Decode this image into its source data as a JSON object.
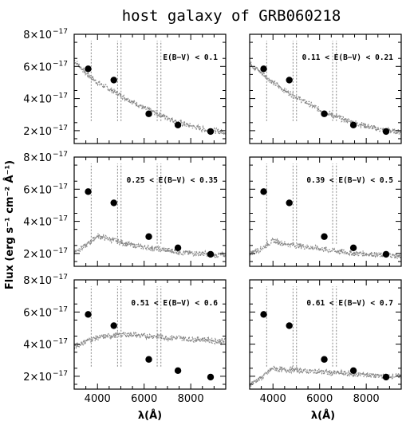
{
  "title": "host galaxy of GRB060218",
  "ylabel": "Flux (erg s⁻¹ cm⁻² Å⁻¹)",
  "xlabel": "λ(Å)",
  "chart_data": {
    "type": "scatter",
    "layout": "3x2 panels",
    "title": "host galaxy of GRB060218",
    "xlabel": "λ(Å)",
    "ylabel": "Flux (erg s⁻¹ cm⁻² Å⁻¹)",
    "xlim": [
      3000,
      9500
    ],
    "ylim": [
      1.2e-17,
      8e-17
    ],
    "x_ticks": [
      4000,
      6000,
      8000
    ],
    "y_ticks": [
      {
        "value": 2e-17,
        "mant": "2×10",
        "exp": "−17"
      },
      {
        "value": 4e-17,
        "mant": "4×10",
        "exp": "−17"
      },
      {
        "value": 6e-17,
        "mant": "6×10",
        "exp": "−17"
      },
      {
        "value": 8e-17,
        "mant": "8×10",
        "exp": "−17"
      }
    ],
    "photometry": {
      "x": [
        3600,
        4700,
        6200,
        7450,
        8850
      ],
      "y": [
        5.85e-17,
        5.15e-17,
        3.05e-17,
        2.35e-17,
        1.95e-17
      ]
    },
    "panels": [
      {
        "label": "E(B−V) < 0.1",
        "model": {
          "x": [
            3000,
            3500,
            4000,
            4500,
            5000,
            5500,
            6000,
            6500,
            7000,
            7500,
            8000,
            8500,
            9000,
            9500
          ],
          "y": [
            6.4e-17,
            5.6e-17,
            5e-17,
            4.6e-17,
            4.2e-17,
            3.8e-17,
            3.4e-17,
            3.1e-17,
            2.8e-17,
            2.5e-17,
            2.3e-17,
            2.1e-17,
            2e-17,
            1.9e-17
          ]
        }
      },
      {
        "label": "0.11 < E(B−V) < 0.21",
        "model": {
          "x": [
            3000,
            3500,
            4000,
            4500,
            5000,
            5500,
            6000,
            6500,
            7000,
            7500,
            8000,
            8500,
            9000,
            9500
          ],
          "y": [
            6.2e-17,
            5.6e-17,
            5e-17,
            4.5e-17,
            4.1e-17,
            3.7e-17,
            3.3e-17,
            3e-17,
            2.7e-17,
            2.5e-17,
            2.3e-17,
            2.1e-17,
            2e-17,
            1.9e-17
          ]
        }
      },
      {
        "label": "0.25 < E(B−V) < 0.35",
        "model": {
          "x": [
            3000,
            3500,
            4000,
            4500,
            5000,
            5500,
            6000,
            6500,
            7000,
            7500,
            8000,
            8500,
            9000,
            9500
          ],
          "y": [
            2.1e-17,
            2.5e-17,
            3.1e-17,
            2.9e-17,
            2.7e-17,
            2.5e-17,
            2.4e-17,
            2.3e-17,
            2.2e-17,
            2.1e-17,
            2e-17,
            2e-17,
            1.9e-17,
            1.9e-17
          ]
        }
      },
      {
        "label": "0.39 < E(B−V) < 0.5",
        "model": {
          "x": [
            3000,
            3500,
            4000,
            4500,
            5000,
            5500,
            6000,
            6500,
            7000,
            7500,
            8000,
            8500,
            9000,
            9500
          ],
          "y": [
            2e-17,
            2.3e-17,
            2.8e-17,
            2.6e-17,
            2.5e-17,
            2.4e-17,
            2.3e-17,
            2.2e-17,
            2.1e-17,
            2e-17,
            2e-17,
            1.9e-17,
            1.9e-17,
            1.8e-17
          ]
        }
      },
      {
        "label": "0.51 < E(B−V) < 0.6",
        "model": {
          "x": [
            3000,
            3500,
            4000,
            4500,
            5000,
            5500,
            6000,
            6500,
            7000,
            7500,
            8000,
            8500,
            9000,
            9500
          ],
          "y": [
            3.8e-17,
            4.2e-17,
            4.4e-17,
            4.5e-17,
            4.6e-17,
            4.6e-17,
            4.5e-17,
            4.5e-17,
            4.4e-17,
            4.4e-17,
            4.3e-17,
            4.3e-17,
            4.2e-17,
            4.2e-17
          ]
        }
      },
      {
        "label": "0.61 < E(B−V) < 0.7",
        "model": {
          "x": [
            3000,
            3500,
            4000,
            4500,
            5000,
            5500,
            6000,
            6500,
            7000,
            7500,
            8000,
            8500,
            9000,
            9500
          ],
          "y": [
            1.5e-17,
            1.9e-17,
            2.5e-17,
            2.4e-17,
            2.4e-17,
            2.3e-17,
            2.3e-17,
            2.2e-17,
            2.2e-17,
            2.1e-17,
            2.1e-17,
            2e-17,
            2e-17,
            2e-17
          ]
        }
      }
    ],
    "colors": {
      "spectrum": "#888888",
      "points": "#000000",
      "axes": "#000000"
    }
  }
}
